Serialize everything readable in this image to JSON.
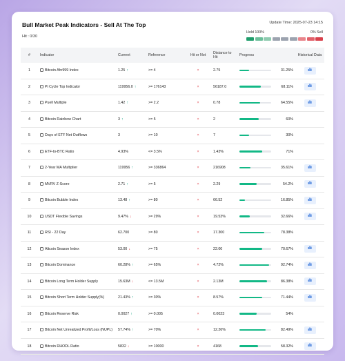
{
  "header": {
    "title": "Bull Market Peak Indicators - Sell At The Top",
    "hit": "Hit : 0/30",
    "update_time": "Update Time: 2025-07-23 14:15",
    "hold_label": "Hold 100%",
    "sell_label": "0% Sell"
  },
  "table": {
    "columns": [
      "#",
      "Indicator",
      "Current",
      "Reference",
      "Hit or Not",
      "Distance to Hit",
      "Progress",
      "Historical Data"
    ],
    "rows": [
      {
        "no": "1",
        "indicator": "Bitcoin Ahr999 Index",
        "current": "1.25",
        "arrow": "↑",
        "reference": ">= 4",
        "hit": "×",
        "distance": "2.75",
        "progress": "31.25%",
        "history": true
      },
      {
        "no": "2",
        "indicator": "Pi Cycle Top Indicator",
        "current": "119956.0",
        "arrow": "↑",
        "reference": ">= 176143",
        "hit": "×",
        "distance": "56187.0",
        "progress": "68.11%",
        "history": true
      },
      {
        "no": "3",
        "indicator": "Puell Multiple",
        "current": "1.42",
        "arrow": "↑",
        "reference": ">= 2.2",
        "hit": "×",
        "distance": "0.78",
        "progress": "64.55%",
        "history": true
      },
      {
        "no": "4",
        "indicator": "Bitcoin Rainbow Chart",
        "current": "3",
        "arrow": "↑",
        "reference": ">= 5",
        "hit": "×",
        "distance": "2",
        "progress": "60%",
        "history": false
      },
      {
        "no": "5",
        "indicator": "Days of ETF Net Outflows",
        "current": "3",
        "reference": ">= 10",
        "hit": "×",
        "distance": "7",
        "progress": "30%",
        "history": false
      },
      {
        "no": "6",
        "indicator": "ETF-to-BTC Ratio",
        "current": "4.93%",
        "reference": "<= 3.5%",
        "hit": "×",
        "distance": "1.43%",
        "progress": "71%",
        "history": false
      },
      {
        "no": "7",
        "indicator": "2-Year MA Multiplier",
        "current": "119956",
        "arrow": "↑",
        "reference": ">= 336864",
        "hit": "×",
        "distance": "216908",
        "progress": "35.61%",
        "history": true
      },
      {
        "no": "8",
        "indicator": "MVRV Z-Score",
        "current": "2.71",
        "arrow": "↑",
        "reference": ">= 5",
        "hit": "×",
        "distance": "2.29",
        "progress": "54.2%",
        "history": true
      },
      {
        "no": "9",
        "indicator": "Bitcoin Bubble Index",
        "current": "13.48",
        "arrow": "↑",
        "reference": ">= 80",
        "hit": "×",
        "distance": "66.52",
        "progress": "16.85%",
        "history": true
      },
      {
        "no": "10",
        "indicator": "USDT Flexible Savings",
        "current": "9.47%",
        "arrow": "↓",
        "reference": ">= 29%",
        "hit": "×",
        "distance": "19.53%",
        "progress": "32.66%",
        "history": true
      },
      {
        "no": "11",
        "indicator": "RSI - 22 Day",
        "current": "62.700",
        "reference": ">= 80",
        "hit": "×",
        "distance": "17.300",
        "progress": "78.38%",
        "history": false
      },
      {
        "no": "12",
        "indicator": "Altcoin Season Index",
        "current": "53.00",
        "arrow": "↓",
        "reference": ">= 75",
        "hit": "×",
        "distance": "22.00",
        "progress": "70.67%",
        "history": true
      },
      {
        "no": "13",
        "indicator": "Bitcoin Dominance",
        "current": "60.28%",
        "arrow": "↑",
        "reference": ">= 65%",
        "hit": "×",
        "distance": "4.72%",
        "progress": "92.74%",
        "history": true
      },
      {
        "no": "14",
        "indicator": "Bitcoin Long Term Holder Supply",
        "current": "15.63M",
        "arrow": "↓",
        "reference": "<= 13.5M",
        "hit": "×",
        "distance": "2.13M",
        "progress": "86.38%",
        "history": true
      },
      {
        "no": "15",
        "indicator": "Bitcoin Short Term Holder Supply(%)",
        "current": "21.43%",
        "arrow": "↑",
        "reference": ">= 30%",
        "hit": "×",
        "distance": "8.57%",
        "progress": "71.44%",
        "history": true
      },
      {
        "no": "16",
        "indicator": "Bitcoin Reserve Risk",
        "current": "0.0027",
        "arrow": "↑",
        "reference": ">= 0.005",
        "hit": "×",
        "distance": "0.0023",
        "progress": "54%",
        "history": false
      },
      {
        "no": "17",
        "indicator": "Bitcoin Net Unrealized Profit/Loss (NUPL)",
        "current": "57.74%",
        "arrow": "↑",
        "reference": ">= 70%",
        "hit": "×",
        "distance": "12.26%",
        "progress": "82.49%",
        "history": true
      },
      {
        "no": "18",
        "indicator": "Bitcoin RHODL Ratio",
        "current": "5832",
        "arrow": "↓",
        "reference": ">= 10000",
        "hit": "×",
        "distance": "4168",
        "progress": "58.32%",
        "history": true
      }
    ]
  }
}
